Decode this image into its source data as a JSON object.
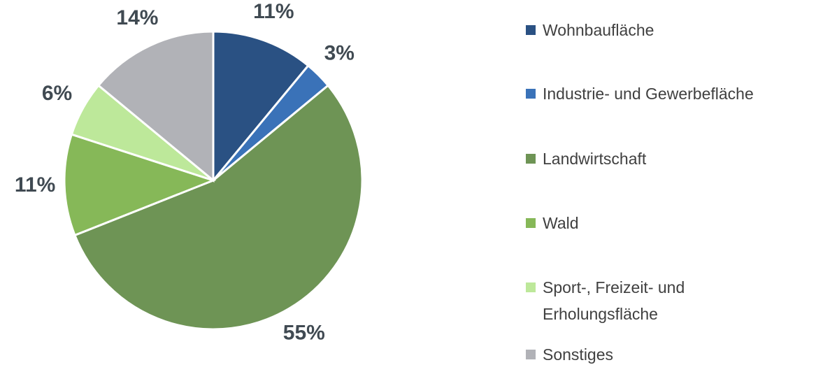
{
  "chart_data": {
    "type": "pie",
    "categories": [
      "Wohnbaufläche",
      "Industrie- und Gewerbefläche",
      "Landwirtschaft",
      "Wald",
      "Sport-, Freizeit- und Erholungsfläche",
      "Sonstiges"
    ],
    "values": [
      11,
      3,
      55,
      11,
      6,
      14
    ],
    "value_labels": [
      "11%",
      "3%",
      "55%",
      "11%",
      "6%",
      "14%"
    ],
    "colors": [
      "#2a5183",
      "#3a72b8",
      "#6e9455",
      "#86b858",
      "#bde89a",
      "#b1b2b7"
    ],
    "legend": "right"
  }
}
